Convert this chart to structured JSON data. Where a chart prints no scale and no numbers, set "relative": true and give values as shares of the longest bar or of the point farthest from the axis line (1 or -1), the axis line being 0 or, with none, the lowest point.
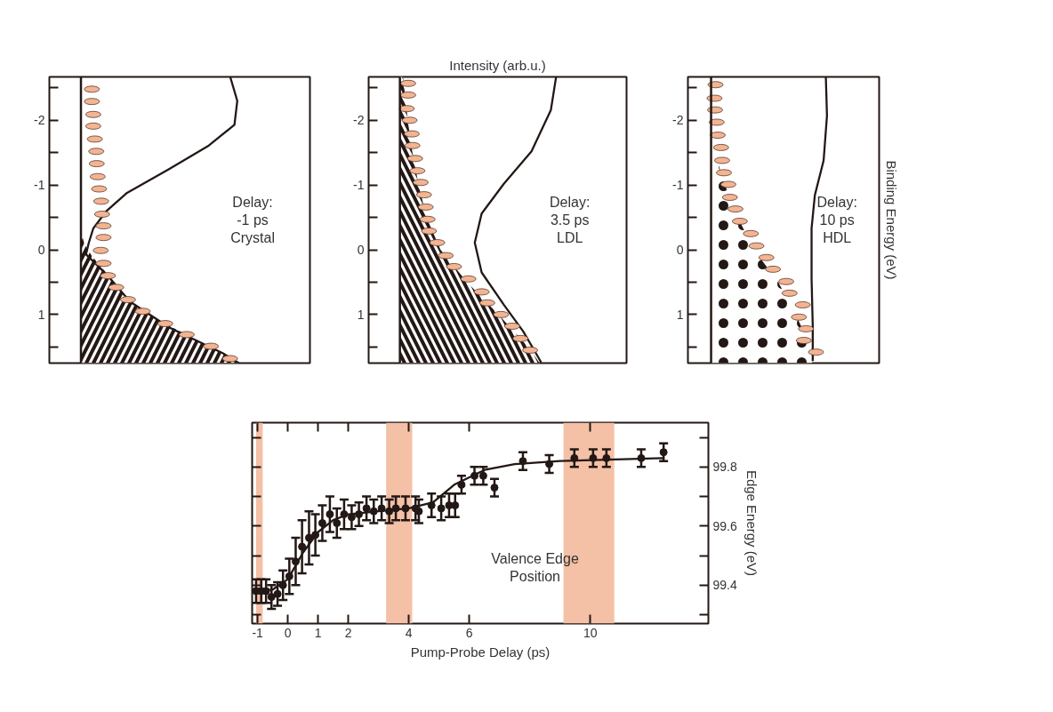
{
  "chart_data": [
    {
      "type": "line",
      "orientation": "horizontal",
      "relative": true,
      "ylim": [
        1.75,
        -2.67
      ],
      "yticks": [
        -2,
        -1,
        0,
        1
      ],
      "annotations": [
        "Delay:\n-1 ps\nCrystal"
      ],
      "series": [
        {
          "type": "area",
          "color": "#231815",
          "x": [
            -0.3,
            -0.1,
            0.1,
            0.3,
            0.5,
            0.7,
            0.9,
            1.1,
            1.3,
            1.5,
            1.75
          ],
          "values": [
            0,
            0.02,
            0.07,
            0.14,
            0.21,
            0.28,
            0.37,
            0.5,
            0.66,
            0.82,
            1.0
          ]
        },
        {
          "type": "line",
          "color": "#231815",
          "x": [
            -2.68,
            -2.3,
            -1.93,
            -1.61,
            -1.24,
            -0.88,
            -0.6,
            -0.33,
            -0.11,
            0.07,
            0.4,
            0.8,
            1.2,
            1.6,
            1.75
          ],
          "values": [
            0.944,
            0.99,
            0.972,
            0.81,
            0.553,
            0.292,
            0.162,
            0.078,
            0.05,
            0.032,
            0.17,
            0.31,
            0.56,
            0.9,
            1.0
          ]
        },
        {
          "type": "scatter",
          "color": "#f2b493",
          "x": [
            -2.48,
            -2.29,
            -2.09,
            -1.91,
            -1.71,
            -1.52,
            -1.33,
            -1.13,
            -0.94,
            -0.75,
            -0.55,
            -0.37,
            -0.19,
            0.01,
            0.21,
            0.4,
            0.58,
            0.77,
            0.95,
            1.14,
            1.31,
            1.49,
            1.68
          ],
          "values": [
            0.069,
            0.069,
            0.078,
            0.078,
            0.088,
            0.097,
            0.1,
            0.106,
            0.115,
            0.128,
            0.134,
            0.143,
            0.143,
            0.125,
            0.143,
            0.171,
            0.223,
            0.298,
            0.391,
            0.534,
            0.67,
            0.823,
            0.944
          ]
        }
      ]
    },
    {
      "type": "line",
      "orientation": "horizontal",
      "relative": true,
      "xlabel": "Intensity (arb.u.)",
      "ylim": [
        1.75,
        -2.67
      ],
      "yticks": [
        -2,
        -1,
        0,
        1
      ],
      "annotations": [
        "Delay:\n3.5 ps\nLDL"
      ],
      "series": [
        {
          "type": "area",
          "color": "#231815",
          "x": [
            -2.67,
            -2,
            -1.5,
            -1,
            -0.5,
            0,
            0.5,
            1,
            1.5,
            1.75
          ],
          "values": [
            0.02,
            0.05,
            0.08,
            0.12,
            0.17,
            0.26,
            0.43,
            0.63,
            0.82,
            0.894
          ]
        },
        {
          "type": "line",
          "color": "#231815",
          "x": [
            -2.68,
            -2.16,
            -1.52,
            -1.02,
            -0.56,
            -0.11,
            0.35,
            0.85,
            1.26,
            1.63,
            1.74
          ],
          "values": [
            1.0,
            0.966,
            0.842,
            0.665,
            0.523,
            0.479,
            0.523,
            0.665,
            0.789,
            0.878,
            0.904
          ]
        },
        {
          "type": "scatter",
          "color": "#f2b493",
          "x": [
            -2.57,
            -2.39,
            -2.18,
            -2.0,
            -1.79,
            -1.61,
            -1.41,
            -1.22,
            -1.04,
            -0.85,
            -0.66,
            -0.47,
            -0.29,
            -0.11,
            0.09,
            0.26,
            0.45,
            0.65,
            0.82,
            1.0,
            1.18,
            1.37,
            1.55
          ],
          "values": [
            0.053,
            0.053,
            0.044,
            0.062,
            0.076,
            0.08,
            0.097,
            0.112,
            0.133,
            0.154,
            0.165,
            0.177,
            0.186,
            0.239,
            0.293,
            0.346,
            0.438,
            0.523,
            0.559,
            0.647,
            0.718,
            0.771,
            0.833
          ]
        }
      ]
    },
    {
      "type": "line",
      "orientation": "horizontal",
      "relative": true,
      "ylabel": "Binding Energy (eV)",
      "ylim": [
        1.75,
        -2.67
      ],
      "yticks": [
        -2,
        -1,
        0,
        1
      ],
      "annotations": [
        "Delay:\n10 ps\nHDL"
      ],
      "series": [
        {
          "type": "area",
          "color": "#231815",
          "x": [
            -2.67,
            -1.5,
            -1,
            -0.5,
            0,
            0.5,
            1,
            1.5,
            1.75
          ],
          "values": [
            0,
            0.03,
            0.12,
            0.23,
            0.37,
            0.58,
            0.73,
            0.86,
            0.87
          ]
        },
        {
          "type": "line",
          "color": "#231815",
          "x": [
            -2.68,
            -2.07,
            -1.38,
            -0.84,
            -0.33,
            0.44,
            1.17,
            1.72
          ],
          "values": [
            0.99,
            1.0,
            0.971,
            0.895,
            0.867,
            0.867,
            0.877,
            0.877
          ]
        },
        {
          "type": "scatter",
          "color": "#f2b493",
          "x": [
            -2.55,
            -2.34,
            -2.16,
            -1.97,
            -1.77,
            -1.58,
            -1.38,
            -1.19,
            -1.01,
            -0.81,
            -0.63,
            -0.44,
            -0.25,
            -0.06,
            0.12,
            0.3,
            0.49,
            0.67,
            0.85,
            1.04,
            1.22,
            1.4,
            1.58
          ],
          "values": [
            0.038,
            0.029,
            0.034,
            0.048,
            0.057,
            0.086,
            0.095,
            0.111,
            0.149,
            0.162,
            0.21,
            0.248,
            0.343,
            0.391,
            0.477,
            0.534,
            0.648,
            0.677,
            0.791,
            0.758,
            0.819,
            0.8,
            0.905
          ]
        }
      ]
    },
    {
      "type": "scatter",
      "grid": false,
      "marker": "circle",
      "line_style": "solid",
      "xlabel": "Pump-Probe Delay (ps)",
      "ylabel": "Edge Energy (eV)",
      "xlim": [
        -1.18,
        13.9
      ],
      "ylim": [
        99.27,
        99.95
      ],
      "xticks": [
        -1,
        0,
        1,
        2,
        4,
        6,
        10
      ],
      "yticks": [
        99.4,
        99.6,
        99.8
      ],
      "annotations": [
        "Valence Edge\nPosition"
      ],
      "bands": [
        {
          "axis": "x",
          "from": -1.05,
          "to": -0.83,
          "color": "#f4c0a6"
        },
        {
          "axis": "x",
          "from": 3.25,
          "to": 4.11,
          "color": "#f4c0a6"
        },
        {
          "axis": "x",
          "from": 9.11,
          "to": 10.79,
          "color": "#f4c0a6"
        }
      ],
      "series": [
        {
          "type": "scatter",
          "color": "#231815",
          "x": [
            -1.05,
            -0.88,
            -0.72,
            -0.54,
            -0.34,
            -0.16,
            0.05,
            0.26,
            0.47,
            0.7,
            0.91,
            1.14,
            1.39,
            1.62,
            1.86,
            2.11,
            2.35,
            2.6,
            2.84,
            3.1,
            3.35,
            3.57,
            3.89,
            4.22,
            4.33,
            4.75,
            5.07,
            5.33,
            5.53,
            5.74,
            6.17,
            6.46,
            6.83,
            7.77,
            8.64,
            9.47,
            10.09,
            10.53,
            11.68,
            12.42
          ],
          "values": [
            99.38,
            99.38,
            99.38,
            99.36,
            99.37,
            99.4,
            99.43,
            99.48,
            99.53,
            99.56,
            99.57,
            99.61,
            99.64,
            99.61,
            99.64,
            99.63,
            99.64,
            99.66,
            99.65,
            99.66,
            99.65,
            99.66,
            99.66,
            99.66,
            99.65,
            99.67,
            99.66,
            99.67,
            99.67,
            99.74,
            99.77,
            99.77,
            99.73,
            99.82,
            99.81,
            99.83,
            99.83,
            99.83,
            99.83,
            99.85
          ],
          "errors": [
            0.04,
            0.04,
            0.04,
            0.04,
            0.04,
            0.05,
            0.06,
            0.08,
            0.09,
            0.09,
            0.07,
            0.06,
            0.06,
            0.05,
            0.05,
            0.04,
            0.04,
            0.04,
            0.04,
            0.04,
            0.04,
            0.04,
            0.04,
            0.04,
            0.04,
            0.04,
            0.04,
            0.04,
            0.04,
            0.03,
            0.03,
            0.03,
            0.03,
            0.03,
            0.03,
            0.03,
            0.03,
            0.03,
            0.03,
            0.03
          ]
        },
        {
          "type": "line",
          "marker": "none",
          "color": "#231815",
          "x": [
            -1.18,
            -0.5,
            0,
            0.5,
            1,
            1.5,
            2,
            3,
            4,
            4.8,
            5.5,
            6.5,
            7.5,
            9,
            12.4
          ],
          "values": [
            99.38,
            99.385,
            99.42,
            99.51,
            99.58,
            99.62,
            99.64,
            99.65,
            99.66,
            99.68,
            99.74,
            99.79,
            99.81,
            99.82,
            99.83
          ]
        }
      ]
    }
  ]
}
